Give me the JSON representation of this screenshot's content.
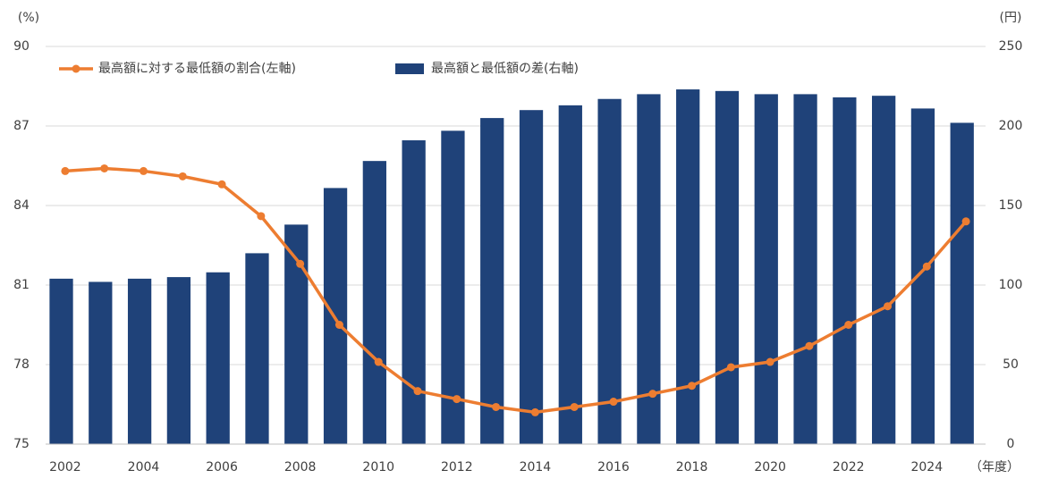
{
  "chart_data": {
    "type": "bar_line",
    "y_unit": "(%)",
    "y2_unit": "(円)",
    "x_unit": "（年度）",
    "categories": [
      2002,
      null,
      2004,
      null,
      2006,
      null,
      2008,
      null,
      2010,
      null,
      2012,
      null,
      2014,
      null,
      2016,
      null,
      2018,
      null,
      2020,
      null,
      2022,
      null,
      2024,
      null
    ],
    "series": [
      {
        "name": "最高額に対する最低額の割合(左軸)",
        "type": "line",
        "color": "#ed7d31",
        "axis": "y",
        "values": [
          85.3,
          85.4,
          85.3,
          85.1,
          84.8,
          83.6,
          81.8,
          79.5,
          78.1,
          77.0,
          76.7,
          76.4,
          76.2,
          76.4,
          76.6,
          76.9,
          77.2,
          77.9,
          78.1,
          78.7,
          79.5,
          80.2,
          81.7,
          83.4
        ]
      },
      {
        "name": "最高額と最低額の差(右軸)",
        "type": "bar",
        "color": "#1f4279",
        "axis": "y2",
        "values": [
          104,
          102,
          104,
          105,
          108,
          120,
          138,
          161,
          178,
          191,
          197,
          205,
          210,
          213,
          217,
          220,
          223,
          222,
          220,
          220,
          218,
          219,
          211,
          202
        ]
      }
    ],
    "ylim": [
      75,
      90
    ],
    "yticks": [
      75,
      78,
      81,
      84,
      87,
      90
    ],
    "y2lim": [
      0,
      250
    ],
    "y2ticks": [
      0,
      50,
      100,
      150,
      200,
      250
    ],
    "grid": true
  }
}
